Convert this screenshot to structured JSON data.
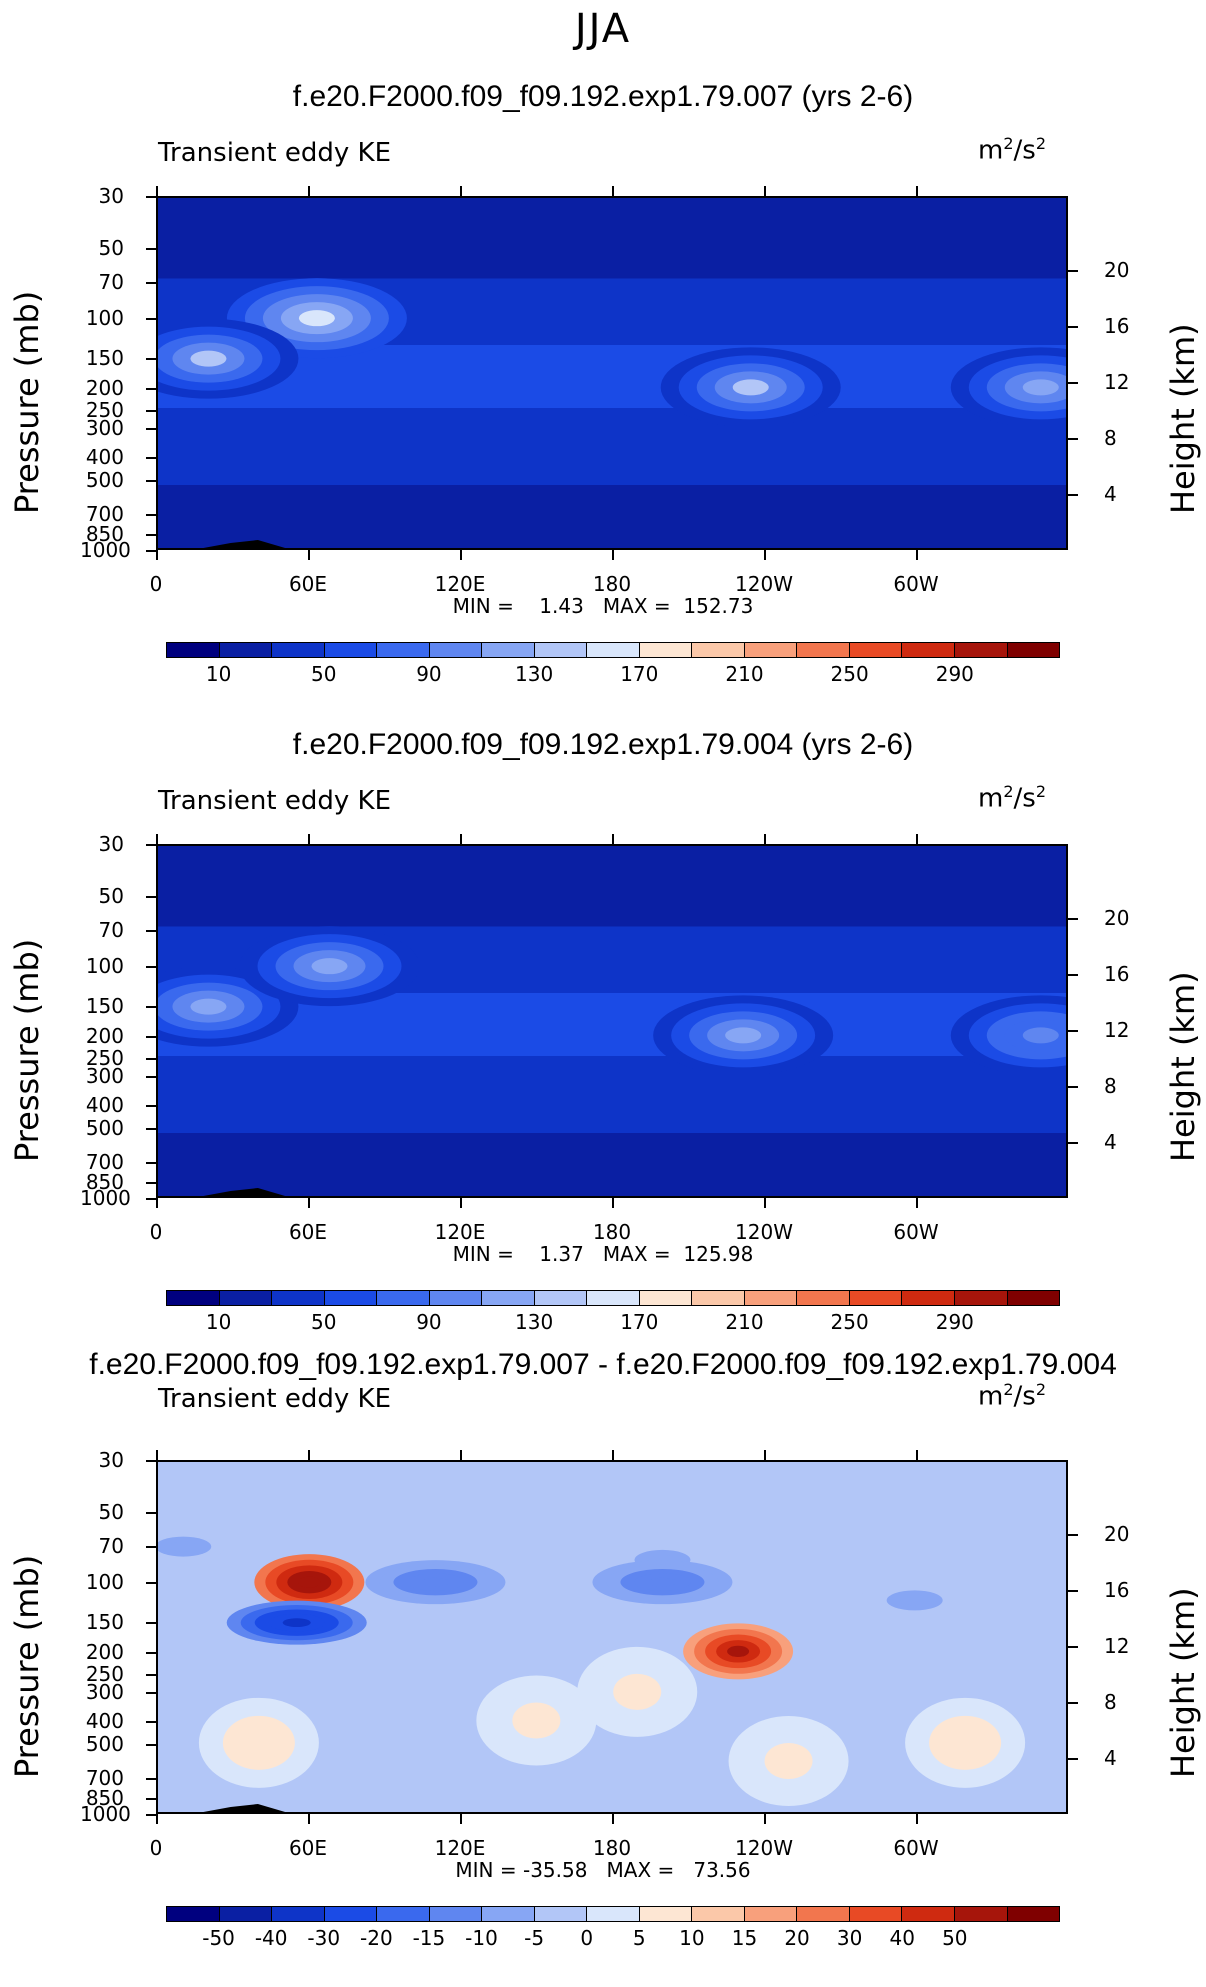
{
  "season": "JJA",
  "units_label": "m²/s²",
  "panels": [
    {
      "title": "f.e20.F2000.f09_f09.192.exp1.79.007 (yrs 2-6)",
      "subtitle": "Transient eddy KE",
      "stats": "MIN =    1.43   MAX =  152.73",
      "colorbar_labels": [
        "10",
        "50",
        "90",
        "130",
        "170",
        "210",
        "250",
        "290"
      ]
    },
    {
      "title": "f.e20.F2000.f09_f09.192.exp1.79.004 (yrs 2-6)",
      "subtitle": "Transient eddy KE",
      "stats": "MIN =    1.37   MAX =  125.98",
      "colorbar_labels": [
        "10",
        "50",
        "90",
        "130",
        "170",
        "210",
        "250",
        "290"
      ]
    },
    {
      "title": "f.e20.F2000.f09_f09.192.exp1.79.007 - f.e20.F2000.f09_f09.192.exp1.79.004",
      "subtitle": "Transient eddy KE",
      "stats": "MIN = -35.58   MAX =   73.56",
      "colorbar_labels": [
        "-50",
        "-40",
        "-30",
        "-20",
        "-15",
        "-10",
        "-5",
        "0",
        "5",
        "10",
        "15",
        "20",
        "30",
        "40",
        "50"
      ]
    }
  ],
  "chart_data": [
    {
      "type": "heatmap",
      "title": "f.e20.F2000.f09_f09.192.exp1.79.007 (yrs 2-6)",
      "variable": "Transient eddy KE",
      "units": "m²/s²",
      "xlabel": "",
      "ylabel": "Pressure (mb)",
      "y2label": "Height (km)",
      "x_ticks": [
        "0",
        "60E",
        "120E",
        "180",
        "120W",
        "60W"
      ],
      "y_ticks": [
        "30",
        "50",
        "70",
        "100",
        "150",
        "200",
        "250",
        "300",
        "400",
        "500",
        "700",
        "850",
        "1000"
      ],
      "y2_ticks": [
        "20",
        "16",
        "12",
        "8",
        "4"
      ],
      "min": 1.43,
      "max": 152.73,
      "levels": [
        10,
        30,
        50,
        70,
        90,
        110,
        130,
        150,
        170,
        190,
        210,
        230,
        250,
        270,
        290
      ],
      "colorbar_labels": [
        "10",
        "50",
        "90",
        "130",
        "170",
        "210",
        "250",
        "290"
      ],
      "colors": [
        "#00007f",
        "#0a1fa3",
        "#0e34c8",
        "#1b4be6",
        "#3a69ee",
        "#5f86f0",
        "#87a6f4",
        "#b2c6f7",
        "#d9e6fb",
        "#fde6d3",
        "#fbc8a9",
        "#f8a07c",
        "#f2764e",
        "#e84a25",
        "#cf2a10",
        "#a6150b",
        "#7f0000"
      ],
      "features": [
        {
          "label": "jet 70E",
          "lon": 63,
          "pressure": 100,
          "value": 150
        },
        {
          "label": "jet 20E",
          "lon": 20,
          "pressure": 150,
          "value": 130
        },
        {
          "label": "jet 125W",
          "lon": 235,
          "pressure": 200,
          "value": 130
        },
        {
          "label": "jet 10W",
          "lon": 350,
          "pressure": 200,
          "value": 110
        }
      ]
    },
    {
      "type": "heatmap",
      "title": "f.e20.F2000.f09_f09.192.exp1.79.004 (yrs 2-6)",
      "variable": "Transient eddy KE",
      "units": "m²/s²",
      "xlabel": "",
      "ylabel": "Pressure (mb)",
      "y2label": "Height (km)",
      "x_ticks": [
        "0",
        "60E",
        "120E",
        "180",
        "120W",
        "60W"
      ],
      "y_ticks": [
        "30",
        "50",
        "70",
        "100",
        "150",
        "200",
        "250",
        "300",
        "400",
        "500",
        "700",
        "850",
        "1000"
      ],
      "y2_ticks": [
        "20",
        "16",
        "12",
        "8",
        "4"
      ],
      "min": 1.37,
      "max": 125.98,
      "levels": [
        10,
        30,
        50,
        70,
        90,
        110,
        130,
        150,
        170,
        190,
        210,
        230,
        250,
        270,
        290
      ],
      "colorbar_labels": [
        "10",
        "50",
        "90",
        "130",
        "170",
        "210",
        "250",
        "290"
      ],
      "colors": [
        "#00007f",
        "#0a1fa3",
        "#0e34c8",
        "#1b4be6",
        "#3a69ee",
        "#5f86f0",
        "#87a6f4",
        "#b2c6f7",
        "#d9e6fb",
        "#fde6d3",
        "#fbc8a9",
        "#f8a07c",
        "#f2764e",
        "#e84a25",
        "#cf2a10",
        "#a6150b",
        "#7f0000"
      ],
      "features": [
        {
          "label": "jet 20E",
          "lon": 20,
          "pressure": 150,
          "value": 125
        },
        {
          "label": "jet 70E",
          "lon": 68,
          "pressure": 100,
          "value": 110
        },
        {
          "label": "jet 125W",
          "lon": 232,
          "pressure": 200,
          "value": 110
        },
        {
          "label": "jet 10W",
          "lon": 350,
          "pressure": 200,
          "value": 105
        }
      ]
    },
    {
      "type": "heatmap",
      "title": "f.e20.F2000.f09_f09.192.exp1.79.007 - f.e20.F2000.f09_f09.192.exp1.79.004",
      "variable": "Transient eddy KE",
      "units": "m²/s²",
      "xlabel": "",
      "ylabel": "Pressure (mb)",
      "y2label": "Height (km)",
      "x_ticks": [
        "0",
        "60E",
        "120E",
        "180",
        "120W",
        "60W"
      ],
      "y_ticks": [
        "30",
        "50",
        "70",
        "100",
        "150",
        "200",
        "250",
        "300",
        "400",
        "500",
        "700",
        "850",
        "1000"
      ],
      "y2_ticks": [
        "20",
        "16",
        "12",
        "8",
        "4"
      ],
      "min": -35.58,
      "max": 73.56,
      "levels": [
        -50,
        -40,
        -30,
        -20,
        -15,
        -10,
        -5,
        0,
        5,
        10,
        15,
        20,
        30,
        40,
        50
      ],
      "colorbar_labels": [
        "-50",
        "-40",
        "-30",
        "-20",
        "-15",
        "-10",
        "-5",
        "0",
        "5",
        "10",
        "15",
        "20",
        "30",
        "40",
        "50"
      ],
      "colors": [
        "#00007f",
        "#0a1fa3",
        "#0e34c8",
        "#1b4be6",
        "#3a69ee",
        "#5f86f0",
        "#87a6f4",
        "#b2c6f7",
        "#d9e6fb",
        "#fde6d3",
        "#fbc8a9",
        "#f8a07c",
        "#f2764e",
        "#e84a25",
        "#cf2a10",
        "#a6150b",
        "#7f0000"
      ],
      "features": [
        {
          "label": "positive anomaly 60E",
          "lon": 60,
          "pressure": 100,
          "value": 70
        },
        {
          "label": "negative anomaly 55E",
          "lon": 55,
          "pressure": 150,
          "value": -35
        },
        {
          "label": "positive anomaly 130W",
          "lon": 230,
          "pressure": 200,
          "value": 50
        },
        {
          "label": "negative band 100E",
          "lon": 110,
          "pressure": 100,
          "value": -15
        },
        {
          "label": "negative band 160W",
          "lon": 200,
          "pressure": 100,
          "value": -15
        }
      ]
    }
  ]
}
